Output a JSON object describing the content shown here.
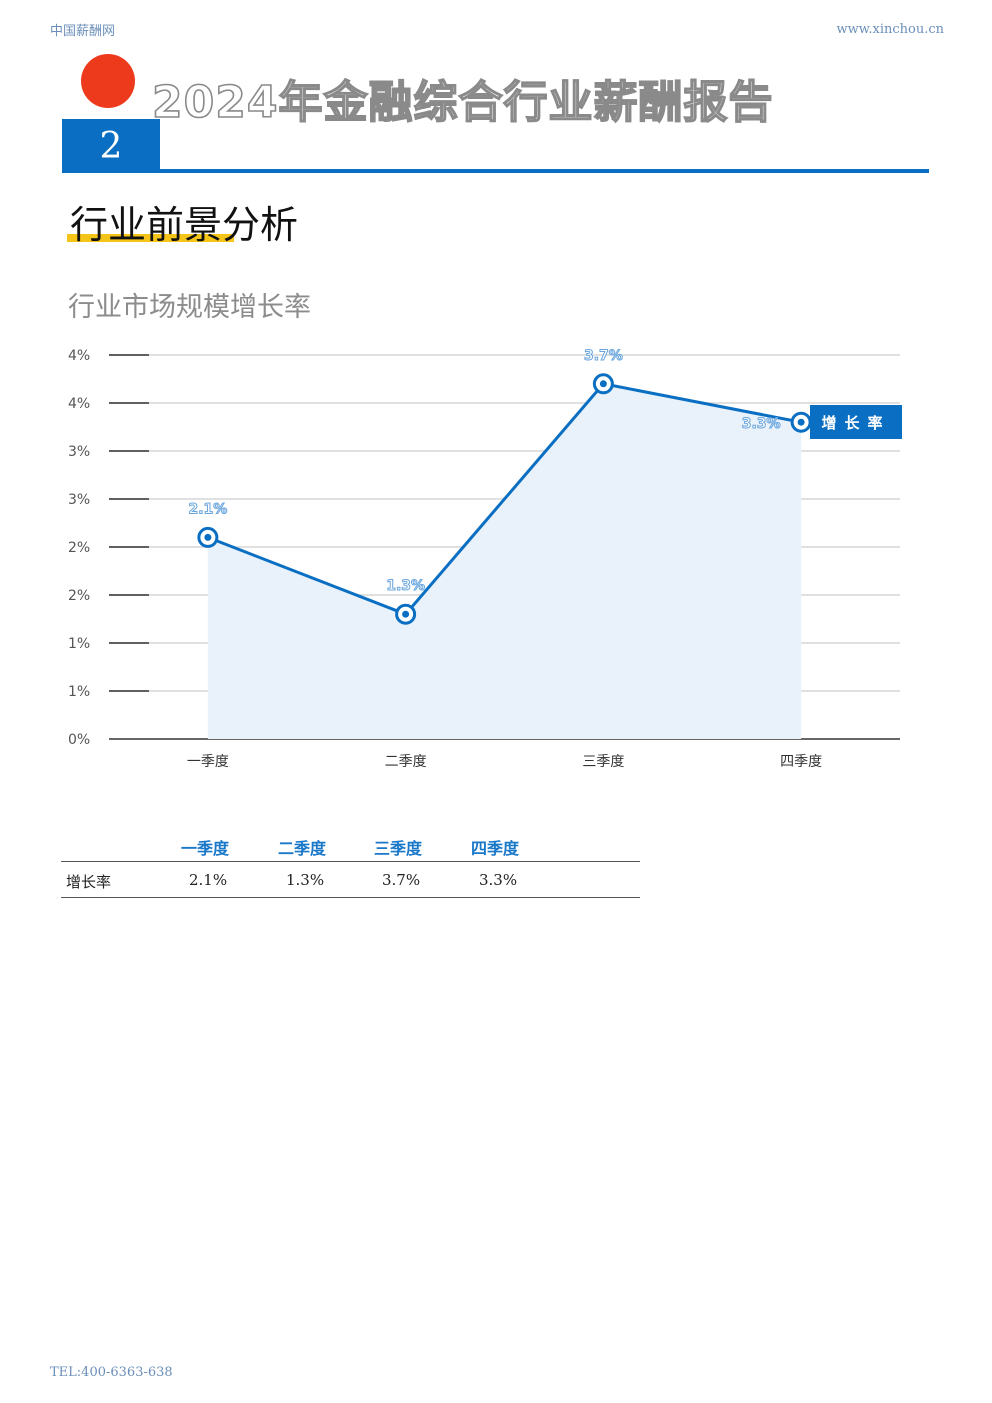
{
  "header": {
    "site_name": "中国薪酬网",
    "site_url": "www.xinchou.cn",
    "report_title": "2024年金融综合行业薪酬报告",
    "chapter_number": "2",
    "accent_color": "#0a6fc2",
    "dot_color": "#ee3a1c"
  },
  "section": {
    "title": "行业前景分析",
    "underline_color": "#f5c419"
  },
  "chart_title": "行业市场规模增长率",
  "chart_data": {
    "type": "line",
    "title": "行业市场规模增长率",
    "categories": [
      "一季度",
      "二季度",
      "三季度",
      "四季度"
    ],
    "series": [
      {
        "name": "增长率",
        "values": [
          2.1,
          1.3,
          3.7,
          3.3
        ],
        "labels": [
          "2.1%",
          "1.3%",
          "3.7%",
          "3.3%"
        ],
        "color": "#0a6fc2"
      }
    ],
    "y_tick_labels": [
      "0%",
      "1%",
      "1%",
      "2%",
      "2%",
      "3%",
      "3%",
      "4%",
      "4%"
    ],
    "ylim": [
      0,
      4
    ],
    "grid": true,
    "area_fill": true,
    "legend": "right"
  },
  "table": {
    "columns": [
      "一季度",
      "二季度",
      "三季度",
      "四季度"
    ],
    "rows": [
      {
        "label": "增长率",
        "values": [
          "2.1%",
          "1.3%",
          "3.7%",
          "3.3%"
        ]
      }
    ]
  },
  "footer": {
    "tel": "TEL:400-6363-638"
  }
}
